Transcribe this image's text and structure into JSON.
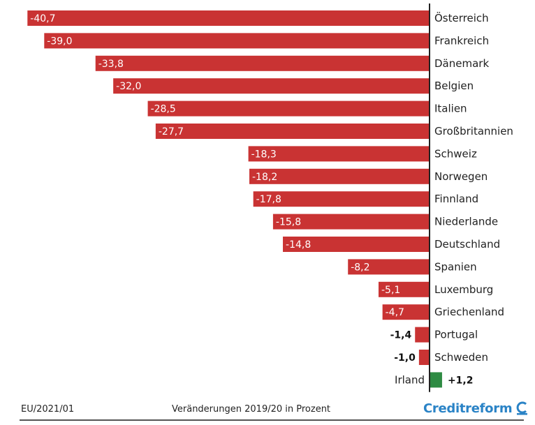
{
  "chart_data": {
    "type": "bar",
    "orientation": "horizontal",
    "categories": [
      "Österreich",
      "Frankreich",
      "Dänemark",
      "Belgien",
      "Italien",
      "Großbritannien",
      "Schweiz",
      "Norwegen",
      "Finnland",
      "Niederlande",
      "Deutschland",
      "Spanien",
      "Luxemburg",
      "Griechenland",
      "Portugal",
      "Schweden",
      "Irland"
    ],
    "values": [
      -40.7,
      -39.0,
      -33.8,
      -32.0,
      -28.5,
      -27.7,
      -18.3,
      -18.2,
      -17.8,
      -15.8,
      -14.8,
      -8.2,
      -5.1,
      -4.7,
      -1.4,
      -1.0,
      1.2
    ],
    "value_labels": [
      "-40,7",
      "-39,0",
      "-33,8",
      "-32,0",
      "-28,5",
      "-27,7",
      "-18,3",
      "-18,2",
      "-17,8",
      "-15,8",
      "-14,8",
      "-8,2",
      "-5,1",
      "-4,7",
      "-1,4",
      "-1,0",
      "+1,2"
    ],
    "title": "",
    "xlabel": "",
    "ylabel": "",
    "xlim": [
      -41.5,
      0
    ],
    "grid": false,
    "colors": {
      "negative": "#c93333",
      "positive": "#2e8b43",
      "axis": "#222222",
      "label_inside": "#ffffff",
      "label_outside": "#111111"
    }
  },
  "footer": {
    "source_code": "EU/2021/01",
    "caption": "Veränderungen 2019/20 in Prozent",
    "brand": "Creditreform",
    "brand_color": "#2a83c6",
    "brand_icon": "creditreform-logo-icon"
  }
}
